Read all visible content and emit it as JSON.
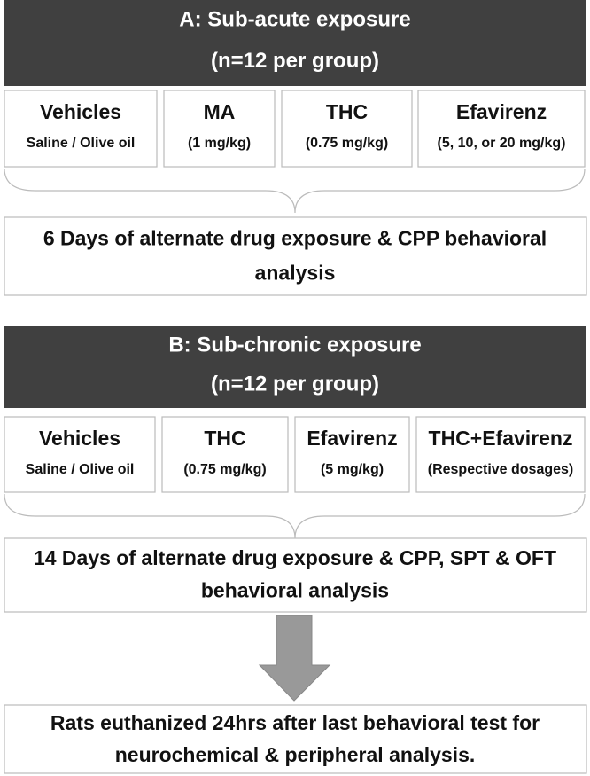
{
  "panels": [
    {
      "title": "A: Sub-acute exposure",
      "subtitle": "(n=12 per group)",
      "groups": [
        {
          "name": "Vehicles",
          "dose": "Saline / Olive oil"
        },
        {
          "name": "MA",
          "dose": "(1 mg/kg)"
        },
        {
          "name": "THC",
          "dose": "(0.75 mg/kg)"
        },
        {
          "name": "Efavirenz",
          "dose": "(5, 10, or 20 mg/kg)"
        }
      ],
      "outcome": [
        "6 Days of alternate drug exposure & CPP behavioral",
        "analysis"
      ]
    },
    {
      "title": "B: Sub-chronic exposure",
      "subtitle": "(n=12 per group)",
      "groups": [
        {
          "name": "Vehicles",
          "dose": "Saline / Olive oil"
        },
        {
          "name": "THC",
          "dose": "(0.75 mg/kg)"
        },
        {
          "name": "Efavirenz",
          "dose": "(5 mg/kg)"
        },
        {
          "name": "THC+Efavirenz",
          "dose": "(Respective dosages)"
        }
      ],
      "outcome": [
        "14 Days of alternate drug exposure & CPP, SPT & OFT",
        "behavioral analysis"
      ]
    }
  ],
  "final": [
    "Rats euthanized 24hrs after last behavioral test for",
    "neurochemical & peripheral analysis."
  ]
}
